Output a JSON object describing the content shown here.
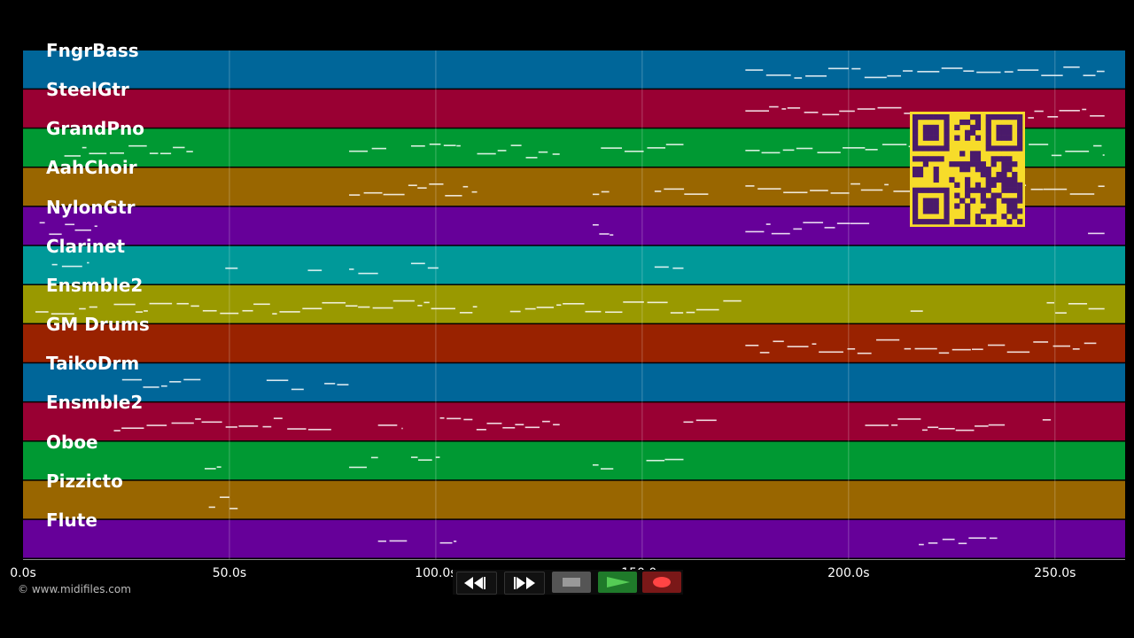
{
  "tracks": [
    {
      "name": "FngrBass",
      "color": "#006699"
    },
    {
      "name": "SteelGtr",
      "color": "#990033"
    },
    {
      "name": "GrandPno",
      "color": "#009933"
    },
    {
      "name": "AahChoir",
      "color": "#996600"
    },
    {
      "name": "NylonGtr",
      "color": "#660099"
    },
    {
      "name": "Clarinet",
      "color": "#009999"
    },
    {
      "name": "Ensmble2",
      "color": "#999900"
    },
    {
      "name": "GM Drums",
      "color": "#992200"
    },
    {
      "name": "TaikoDrm",
      "color": "#006699"
    },
    {
      "name": "Ensmble2",
      "color": "#990033"
    },
    {
      "name": "Oboe",
      "color": "#009933"
    },
    {
      "name": "Pizzicto",
      "color": "#996600"
    },
    {
      "name": "Flute",
      "color": "#660099"
    }
  ],
  "time_axis": {
    "ticks": [
      "0.0s",
      "50.0s",
      "100.0s",
      "150.0s",
      "200.0s",
      "250.0s"
    ],
    "tick_values": [
      0,
      50,
      100,
      150,
      200,
      250
    ],
    "max_seconds": 267
  },
  "transport": {
    "rewind_icon": "rewind-icon",
    "fast_forward_icon": "fast-forward-icon",
    "stop_icon": "stop-icon",
    "play_icon": "play-icon",
    "record_icon": "record-icon",
    "colors": {
      "stop": "#555555",
      "play": "#1f7a2a",
      "record": "#7a1818",
      "record_dot": "#ff4444",
      "play_triangle": "#55cc55"
    }
  },
  "qr_code": {
    "color_bg": "#f7dc2a",
    "color_fg": "#4a1a6b"
  },
  "copyright": "© www.midifiles.com"
}
